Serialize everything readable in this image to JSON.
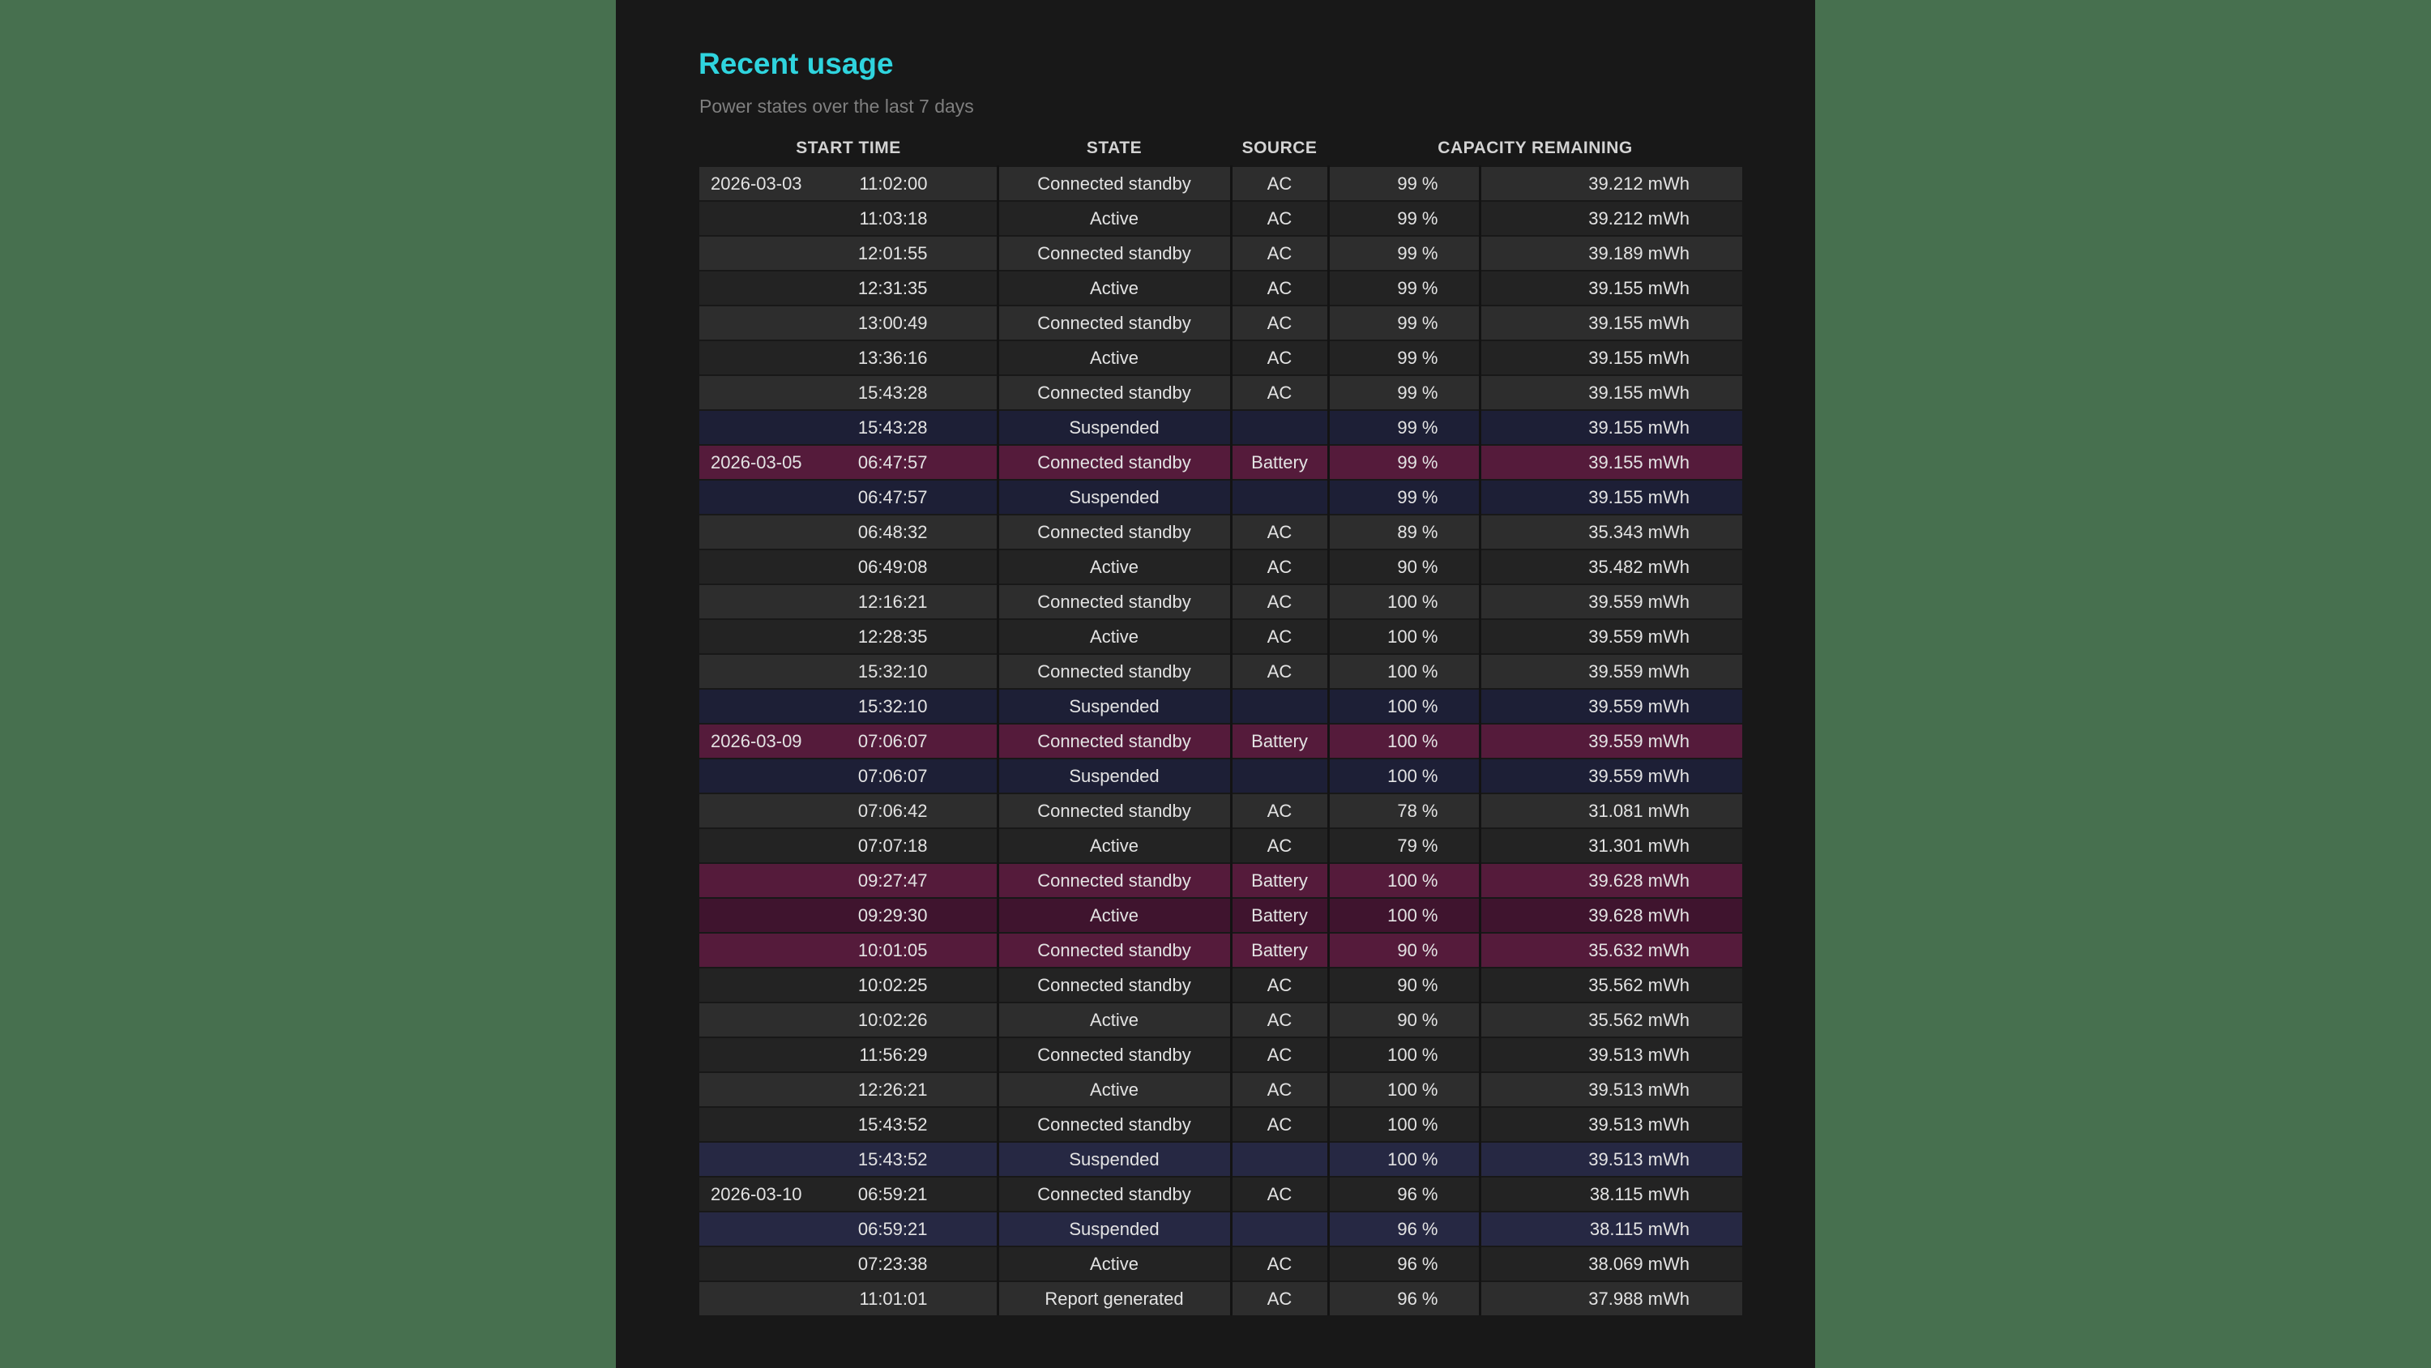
{
  "page": {
    "outer_background": "#47704f",
    "panel_background": "#181818"
  },
  "header": {
    "title": "Recent usage",
    "title_color": "#2fd4de",
    "subtitle": "Power states over the last 7 days"
  },
  "table": {
    "columns": [
      "START TIME",
      "STATE",
      "SOURCE",
      "CAPACITY REMAINING"
    ],
    "row_colors": {
      "normal_odd": "#2d2d2d",
      "normal_even": "#232323",
      "battery_odd": "#551b3b",
      "battery_even": "#3f142e",
      "suspended_odd": "#262843",
      "suspended_even": "#1d1f36"
    },
    "rows": [
      {
        "date": "2026-03-03",
        "time": "11:02:00",
        "state": "Connected standby",
        "source": "AC",
        "percent": "99 %",
        "capacity": "39.212 mWh",
        "highlight": "none"
      },
      {
        "date": "",
        "time": "11:03:18",
        "state": "Active",
        "source": "AC",
        "percent": "99 %",
        "capacity": "39.212 mWh",
        "highlight": "none"
      },
      {
        "date": "",
        "time": "12:01:55",
        "state": "Connected standby",
        "source": "AC",
        "percent": "99 %",
        "capacity": "39.189 mWh",
        "highlight": "none"
      },
      {
        "date": "",
        "time": "12:31:35",
        "state": "Active",
        "source": "AC",
        "percent": "99 %",
        "capacity": "39.155 mWh",
        "highlight": "none"
      },
      {
        "date": "",
        "time": "13:00:49",
        "state": "Connected standby",
        "source": "AC",
        "percent": "99 %",
        "capacity": "39.155 mWh",
        "highlight": "none"
      },
      {
        "date": "",
        "time": "13:36:16",
        "state": "Active",
        "source": "AC",
        "percent": "99 %",
        "capacity": "39.155 mWh",
        "highlight": "none"
      },
      {
        "date": "",
        "time": "15:43:28",
        "state": "Connected standby",
        "source": "AC",
        "percent": "99 %",
        "capacity": "39.155 mWh",
        "highlight": "none"
      },
      {
        "date": "",
        "time": "15:43:28",
        "state": "Suspended",
        "source": "",
        "percent": "99 %",
        "capacity": "39.155 mWh",
        "highlight": "suspended"
      },
      {
        "date": "2026-03-05",
        "time": "06:47:57",
        "state": "Connected standby",
        "source": "Battery",
        "percent": "99 %",
        "capacity": "39.155 mWh",
        "highlight": "battery"
      },
      {
        "date": "",
        "time": "06:47:57",
        "state": "Suspended",
        "source": "",
        "percent": "99 %",
        "capacity": "39.155 mWh",
        "highlight": "suspended"
      },
      {
        "date": "",
        "time": "06:48:32",
        "state": "Connected standby",
        "source": "AC",
        "percent": "89 %",
        "capacity": "35.343 mWh",
        "highlight": "none"
      },
      {
        "date": "",
        "time": "06:49:08",
        "state": "Active",
        "source": "AC",
        "percent": "90 %",
        "capacity": "35.482 mWh",
        "highlight": "none"
      },
      {
        "date": "",
        "time": "12:16:21",
        "state": "Connected standby",
        "source": "AC",
        "percent": "100 %",
        "capacity": "39.559 mWh",
        "highlight": "none"
      },
      {
        "date": "",
        "time": "12:28:35",
        "state": "Active",
        "source": "AC",
        "percent": "100 %",
        "capacity": "39.559 mWh",
        "highlight": "none"
      },
      {
        "date": "",
        "time": "15:32:10",
        "state": "Connected standby",
        "source": "AC",
        "percent": "100 %",
        "capacity": "39.559 mWh",
        "highlight": "none"
      },
      {
        "date": "",
        "time": "15:32:10",
        "state": "Suspended",
        "source": "",
        "percent": "100 %",
        "capacity": "39.559 mWh",
        "highlight": "suspended"
      },
      {
        "date": "2026-03-09",
        "time": "07:06:07",
        "state": "Connected standby",
        "source": "Battery",
        "percent": "100 %",
        "capacity": "39.559 mWh",
        "highlight": "battery"
      },
      {
        "date": "",
        "time": "07:06:07",
        "state": "Suspended",
        "source": "",
        "percent": "100 %",
        "capacity": "39.559 mWh",
        "highlight": "suspended"
      },
      {
        "date": "",
        "time": "07:06:42",
        "state": "Connected standby",
        "source": "AC",
        "percent": "78 %",
        "capacity": "31.081 mWh",
        "highlight": "none"
      },
      {
        "date": "",
        "time": "07:07:18",
        "state": "Active",
        "source": "AC",
        "percent": "79 %",
        "capacity": "31.301 mWh",
        "highlight": "none"
      },
      {
        "date": "",
        "time": "09:27:47",
        "state": "Connected standby",
        "source": "Battery",
        "percent": "100 %",
        "capacity": "39.628 mWh",
        "highlight": "battery"
      },
      {
        "date": "",
        "time": "09:29:30",
        "state": "Active",
        "source": "Battery",
        "percent": "100 %",
        "capacity": "39.628 mWh",
        "highlight": "battery"
      },
      {
        "date": "",
        "time": "10:01:05",
        "state": "Connected standby",
        "source": "Battery",
        "percent": "90 %",
        "capacity": "35.632 mWh",
        "highlight": "battery"
      },
      {
        "date": "",
        "time": "10:02:25",
        "state": "Connected standby",
        "source": "AC",
        "percent": "90 %",
        "capacity": "35.562 mWh",
        "highlight": "none"
      },
      {
        "date": "",
        "time": "10:02:26",
        "state": "Active",
        "source": "AC",
        "percent": "90 %",
        "capacity": "35.562 mWh",
        "highlight": "none"
      },
      {
        "date": "",
        "time": "11:56:29",
        "state": "Connected standby",
        "source": "AC",
        "percent": "100 %",
        "capacity": "39.513 mWh",
        "highlight": "none"
      },
      {
        "date": "",
        "time": "12:26:21",
        "state": "Active",
        "source": "AC",
        "percent": "100 %",
        "capacity": "39.513 mWh",
        "highlight": "none"
      },
      {
        "date": "",
        "time": "15:43:52",
        "state": "Connected standby",
        "source": "AC",
        "percent": "100 %",
        "capacity": "39.513 mWh",
        "highlight": "none"
      },
      {
        "date": "",
        "time": "15:43:52",
        "state": "Suspended",
        "source": "",
        "percent": "100 %",
        "capacity": "39.513 mWh",
        "highlight": "suspended"
      },
      {
        "date": "2026-03-10",
        "time": "06:59:21",
        "state": "Connected standby",
        "source": "AC",
        "percent": "96 %",
        "capacity": "38.115 mWh",
        "highlight": "none"
      },
      {
        "date": "",
        "time": "06:59:21",
        "state": "Suspended",
        "source": "",
        "percent": "96 %",
        "capacity": "38.115 mWh",
        "highlight": "suspended"
      },
      {
        "date": "",
        "time": "07:23:38",
        "state": "Active",
        "source": "AC",
        "percent": "96 %",
        "capacity": "38.069 mWh",
        "highlight": "none"
      },
      {
        "date": "",
        "time": "11:01:01",
        "state": "Report generated",
        "source": "AC",
        "percent": "96 %",
        "capacity": "37.988 mWh",
        "highlight": "none"
      }
    ]
  }
}
